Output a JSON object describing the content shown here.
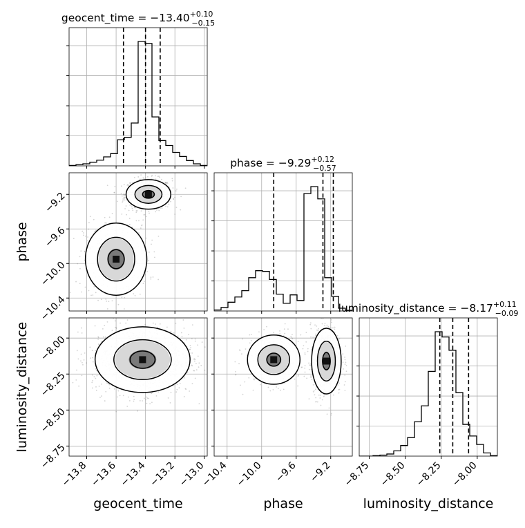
{
  "chart_data": {
    "type": "corner",
    "parameters": [
      "geocent_time",
      "phase",
      "luminosity_distance"
    ],
    "titles": [
      {
        "param": "geocent_time",
        "prefix": "geocent_time = ",
        "value": "−13.40",
        "upper": "+0.10",
        "lower": "−0.15"
      },
      {
        "param": "phase",
        "prefix": "phase = ",
        "value": "−9.29",
        "upper": "+0.12",
        "lower": "−0.57"
      },
      {
        "param": "luminosity_distance",
        "prefix": "luminosity_distance = ",
        "value": "−8.17",
        "upper": "+0.11",
        "lower": "−0.09"
      }
    ],
    "axes": {
      "geocent_time": {
        "range": [
          -13.92,
          -12.98
        ],
        "ticks": [
          -13.8,
          -13.6,
          -13.4,
          -13.2,
          -13.0
        ],
        "tick_labels": [
          "−13.8",
          "−13.6",
          "−13.4",
          "−13.2",
          "−13.0"
        ],
        "label": "geocent_time"
      },
      "phase": {
        "range": [
          -10.55,
          -8.95
        ],
        "ticks": [
          -10.4,
          -10.0,
          -9.6,
          -9.2
        ],
        "tick_labels": [
          "−10.4",
          "−10.0",
          "−9.6",
          "−9.2"
        ],
        "label": "phase"
      },
      "luminosity_distance": {
        "range": [
          -8.82,
          -7.86
        ],
        "ticks": [
          -8.75,
          -8.5,
          -8.25,
          -8.0
        ],
        "tick_labels": [
          "−8.75",
          "−8.50",
          "−8.25",
          "−8.00"
        ],
        "label": "luminosity_distance"
      }
    },
    "histograms": {
      "geocent_time": {
        "edges": [
          -13.92,
          -13.873,
          -13.826,
          -13.779,
          -13.732,
          -13.685,
          -13.638,
          -13.591,
          -13.544,
          -13.497,
          -13.45,
          -13.403,
          -13.356,
          -13.309,
          -13.262,
          -13.215,
          -13.168,
          -13.121,
          -13.074,
          -13.027,
          -12.98
        ],
        "counts": [
          1,
          3,
          5,
          9,
          14,
          22,
          30,
          64,
          70,
          105,
          305,
          300,
          120,
          62,
          50,
          33,
          23,
          13,
          5,
          1
        ],
        "quantiles": [
          -13.55,
          -13.4,
          -13.3
        ]
      },
      "phase": {
        "edges": [
          -10.55,
          -10.47,
          -10.39,
          -10.31,
          -10.23,
          -10.15,
          -10.07,
          -9.99,
          -9.91,
          -9.83,
          -9.75,
          -9.67,
          -9.59,
          -9.51,
          -9.43,
          -9.35,
          -9.27,
          -9.19,
          -9.11,
          -9.03,
          -8.95
        ],
        "counts": [
          3,
          10,
          25,
          40,
          58,
          95,
          115,
          113,
          90,
          48,
          22,
          46,
          30,
          335,
          355,
          320,
          95,
          42,
          8,
          2
        ],
        "quantiles": [
          -9.86,
          -9.29,
          -9.17
        ]
      },
      "luminosity_distance": {
        "edges": [
          -8.82,
          -8.772,
          -8.724,
          -8.676,
          -8.628,
          -8.58,
          -8.532,
          -8.484,
          -8.436,
          -8.388,
          -8.34,
          -8.292,
          -8.244,
          -8.196,
          -8.148,
          -8.1,
          -8.052,
          -8.004,
          -7.956,
          -7.908,
          -7.86
        ],
        "counts": [
          0,
          0,
          1,
          2,
          4,
          10,
          20,
          35,
          65,
          95,
          160,
          235,
          225,
          200,
          120,
          60,
          38,
          22,
          6,
          1
        ],
        "quantiles": [
          -8.26,
          -8.17,
          -8.06
        ]
      }
    },
    "scatter_clusters": [
      {
        "pair": [
          "geocent_time",
          "phase"
        ],
        "center": [
          -13.38,
          -9.2
        ],
        "spread": [
          0.08,
          0.09
        ],
        "n": 700
      },
      {
        "pair": [
          "geocent_time",
          "phase"
        ],
        "center": [
          -13.6,
          -9.95
        ],
        "spread": [
          0.11,
          0.22
        ],
        "n": 450
      },
      {
        "pair": [
          "geocent_time",
          "luminosity_distance"
        ],
        "center": [
          -13.42,
          -8.15
        ],
        "spread": [
          0.17,
          0.12
        ],
        "n": 1100
      },
      {
        "pair": [
          "phase",
          "luminosity_distance"
        ],
        "center": [
          -9.25,
          -8.16
        ],
        "spread": [
          0.09,
          0.12
        ],
        "n": 650
      },
      {
        "pair": [
          "phase",
          "luminosity_distance"
        ],
        "center": [
          -9.86,
          -8.15
        ],
        "spread": [
          0.16,
          0.09
        ],
        "n": 450
      }
    ],
    "contour_levels": [
      "inner",
      "middle",
      "outer"
    ],
    "grid": true,
    "colors": {
      "line": "#000000",
      "grid": "#b0b0b0",
      "scatter": "#808080"
    }
  }
}
